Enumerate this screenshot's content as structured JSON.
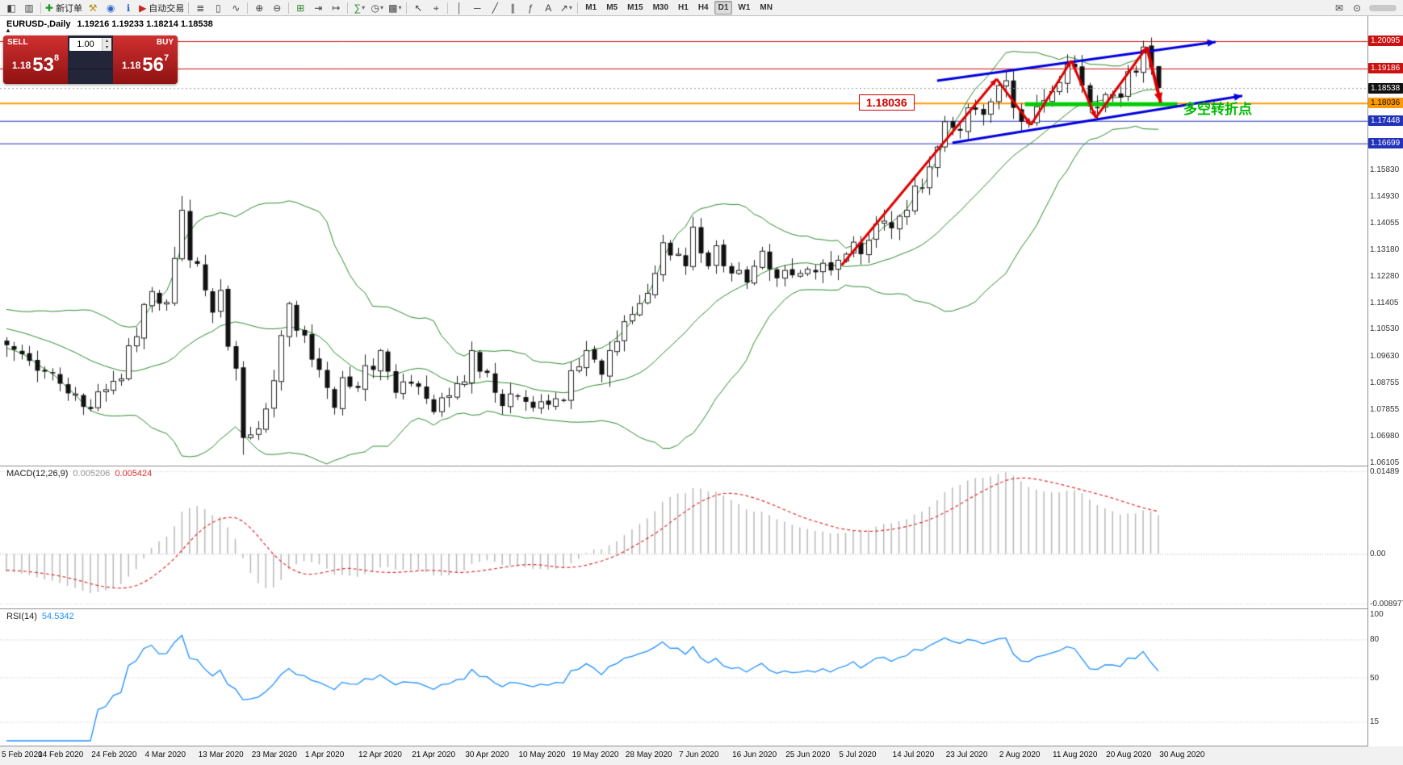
{
  "toolbar": {
    "caret_glyph": "▾",
    "groups": [
      {
        "buttons": [
          {
            "name": "charts-icon",
            "glyph": "◧"
          },
          {
            "name": "profiles-icon",
            "glyph": "▥"
          }
        ]
      },
      {
        "buttons": [
          {
            "name": "new-order-button",
            "glyph": "✚",
            "glyph_color": "#1a9a1a",
            "label": "新订单"
          },
          {
            "name": "metaeditor-icon",
            "glyph": "⚒",
            "glyph_color": "#b8860b"
          },
          {
            "name": "accounts-icon",
            "glyph": "◉",
            "glyph_color": "#3366cc"
          },
          {
            "name": "info-icon",
            "glyph": "ℹ",
            "glyph_color": "#3366cc"
          },
          {
            "name": "autotrading-button",
            "glyph": "▶",
            "glyph_color": "#cc2222",
            "label": "自动交易"
          }
        ]
      },
      {
        "buttons": [
          {
            "name": "bars-icon",
            "glyph": "≣"
          },
          {
            "name": "candlesticks-icon",
            "glyph": "▯"
          },
          {
            "name": "line-chart-icon",
            "glyph": "∿"
          }
        ]
      },
      {
        "buttons": [
          {
            "name": "zoom-in-icon",
            "glyph": "⊕"
          },
          {
            "name": "zoom-out-icon",
            "glyph": "⊖"
          }
        ]
      },
      {
        "buttons": [
          {
            "name": "tile-windows-icon",
            "glyph": "⊞",
            "glyph_color": "#2a8a2a"
          },
          {
            "name": "auto-scroll-icon",
            "glyph": "⇥"
          },
          {
            "name": "chart-shift-icon",
            "glyph": "↦"
          }
        ]
      },
      {
        "buttons": [
          {
            "name": "indicators-icon",
            "glyph": "∑",
            "glyph_color": "#2a8a2a",
            "caret": true
          },
          {
            "name": "periods-icon",
            "glyph": "◷",
            "caret": true
          },
          {
            "name": "templates-icon",
            "glyph": "▩",
            "caret": true
          }
        ]
      },
      {
        "buttons": [
          {
            "name": "cursor-icon",
            "glyph": "↖"
          },
          {
            "name": "crosshair-icon",
            "glyph": "⌖"
          }
        ]
      },
      {
        "buttons": [
          {
            "name": "vertical-line-icon",
            "glyph": "│"
          },
          {
            "name": "horizontal-line-icon",
            "glyph": "─"
          },
          {
            "name": "trendline-icon",
            "glyph": "╱"
          },
          {
            "name": "channel-icon",
            "glyph": "∥"
          },
          {
            "name": "fibonacci-icon",
            "glyph": "ƒ"
          },
          {
            "name": "text-icon",
            "glyph": "A"
          },
          {
            "name": "arrows-icon",
            "glyph": "↗",
            "caret": true
          }
        ]
      }
    ],
    "timeframes": [
      {
        "label": "M1"
      },
      {
        "label": "M5"
      },
      {
        "label": "M15"
      },
      {
        "label": "M30"
      },
      {
        "label": "H1"
      },
      {
        "label": "H4"
      },
      {
        "label": "D1",
        "active": true
      },
      {
        "label": "W1"
      },
      {
        "label": "MN"
      }
    ],
    "right_buttons": [
      {
        "name": "new-email-icon",
        "glyph": "✉"
      },
      {
        "name": "search-icon",
        "glyph": "⊙"
      }
    ]
  },
  "chart": {
    "title_symbol": "EURUSD-,Daily",
    "title_ohlc": "1.19216 1.19233 1.18214 1.18538"
  },
  "one_click": {
    "toggle_glyph": "▲",
    "sell_label": "SELL",
    "buy_label": "BUY",
    "volume": "1.00",
    "spinner_up_glyph": "▴",
    "spinner_down_glyph": "▾",
    "sell_price_head": "1.18",
    "sell_price_big": "53",
    "sell_price_sup": "8",
    "buy_price_head": "1.18",
    "buy_price_big": "56",
    "buy_price_sup": "7"
  },
  "annotations": {
    "price_flag": "1.18036",
    "turning_point": "多空转折点"
  },
  "price_axis": {
    "highlighted": [
      {
        "text": "1.20095",
        "price": 1.20095,
        "bg": "#cc1111",
        "fg": "#ffffff"
      },
      {
        "text": "1.19186",
        "price": 1.19186,
        "bg": "#cc1111",
        "fg": "#ffffff"
      },
      {
        "text": "1.18538",
        "price": 1.18538,
        "bg": "#111111",
        "fg": "#ffffff"
      },
      {
        "text": "1.18036",
        "price": 1.18036,
        "bg": "#ff9900",
        "fg": "#111111"
      },
      {
        "text": "1.17448",
        "price": 1.17448,
        "bg": "#2233bb",
        "fg": "#ffffff"
      },
      {
        "text": "1.16699",
        "price": 1.16699,
        "bg": "#2233bb",
        "fg": "#ffffff"
      }
    ],
    "ticks": [
      "1.15830",
      "1.14930",
      "1.14055",
      "1.13180",
      "1.12280",
      "1.11405",
      "1.10530",
      "1.09630",
      "1.08755",
      "1.07855",
      "1.06980",
      "1.06105"
    ]
  },
  "macd_panel": {
    "name": "MACD(12,26,9)",
    "value_main": "0.005206",
    "value_signal": "0.005424",
    "axis": [
      "0.01489",
      "0.00",
      "-0.008977"
    ]
  },
  "rsi_panel": {
    "name": "RSI(14)",
    "value": "54.5342",
    "axis": [
      "100",
      "80",
      "50",
      "15"
    ],
    "levels": [
      80,
      50,
      15
    ]
  },
  "dates": [
    "5 Feb 2020",
    "14 Feb 2020",
    "24 Feb 2020",
    "4 Mar 2020",
    "13 Mar 2020",
    "23 Mar 2020",
    "1 Apr 2020",
    "12 Apr 2020",
    "21 Apr 2020",
    "30 Apr 2020",
    "10 May 2020",
    "19 May 2020",
    "28 May 2020",
    "7 Jun 2020",
    "16 Jun 2020",
    "25 Jun 2020",
    "5 Jul 2020",
    "14 Jul 2020",
    "23 Jul 2020",
    "2 Aug 2020",
    "11 Aug 2020",
    "20 Aug 2020",
    "30 Aug 2020"
  ],
  "chart_data": {
    "type": "candlestick",
    "symbol": "EURUSD",
    "period": "Daily",
    "price_range": {
      "top": 1.20925,
      "bottom": 1.06
    },
    "closes": [
      1.1,
      1.0985,
      1.097,
      1.0948,
      1.0915,
      1.0912,
      1.0908,
      1.0872,
      1.084,
      1.0838,
      1.0795,
      1.0788,
      1.0845,
      1.0852,
      1.088,
      1.0888,
      1.0998,
      1.1028,
      1.1135,
      1.1178,
      1.1138,
      1.1142,
      1.1288,
      1.1448,
      1.1282,
      1.127,
      1.1182,
      1.1108,
      1.1182,
      1.0995,
      1.0922,
      1.0692,
      1.0702,
      1.0722,
      1.0788,
      1.0882,
      1.1032,
      1.1138,
      1.1048,
      1.1032,
      1.0952,
      1.0918,
      1.0858,
      1.0792,
      1.0892,
      1.0862,
      1.0858,
      1.0932,
      1.0918,
      1.0982,
      1.0912,
      1.0842,
      1.0878,
      1.0872,
      1.0862,
      1.0822,
      1.0778,
      1.0825,
      1.0832,
      1.0872,
      1.0878,
      1.0982,
      1.0912,
      1.0908,
      1.0842,
      1.0798,
      1.0838,
      1.0832,
      1.0812,
      1.0792,
      1.0812,
      1.0802,
      1.0822,
      1.0818,
      1.0915,
      1.0928,
      1.0982,
      1.0952,
      1.0902,
      1.0982,
      1.1012,
      1.1078,
      1.1102,
      1.1138,
      1.1172,
      1.1238,
      1.134,
      1.1298,
      1.1302,
      1.1262,
      1.1392,
      1.1305,
      1.1262,
      1.133,
      1.1262,
      1.1238,
      1.1248,
      1.1208,
      1.1262,
      1.1312,
      1.1252,
      1.1222,
      1.1248,
      1.1232,
      1.1238,
      1.1252,
      1.1242,
      1.1272,
      1.1248,
      1.1282,
      1.1302,
      1.1342,
      1.1302,
      1.1348,
      1.1402,
      1.1412,
      1.1388,
      1.1428,
      1.1448,
      1.1528,
      1.1522,
      1.1592,
      1.1658,
      1.1742,
      1.1722,
      1.1712,
      1.1788,
      1.1782,
      1.1765,
      1.1808,
      1.1862,
      1.1878,
      1.1788,
      1.1742,
      1.1738,
      1.1792,
      1.1812,
      1.1842,
      1.1872,
      1.1932,
      1.1922,
      1.1862,
      1.1792,
      1.1788,
      1.1832,
      1.1832,
      1.1822,
      1.1908,
      1.1905,
      1.199,
      1.1922,
      1.18538
    ],
    "pre_pad": {
      "count": 30,
      "from": 1.1168,
      "to": 1.1008
    },
    "wick_overrides": {
      "23": {
        "h": 1.1495
      },
      "31": {
        "l": 1.0636
      },
      "131": {
        "h": 1.1912
      },
      "139": {
        "h": 1.1966
      },
      "149": {
        "h": 1.2011
      },
      "151": {
        "h": 1.1924,
        "l": 1.1821
      }
    },
    "bollinger": {
      "period": 20,
      "deviation": 2,
      "color": "#2e8b2e"
    },
    "levels": [
      {
        "price": 1.20095,
        "color": "#cc1111",
        "width": 1,
        "style": "solid"
      },
      {
        "price": 1.19186,
        "color": "#cc1111",
        "width": 1,
        "style": "solid"
      },
      {
        "price": 1.18538,
        "color": "#999999",
        "width": 1,
        "style": "dot"
      },
      {
        "price": 1.18036,
        "color": "#ff9900",
        "width": 2,
        "style": "solid"
      },
      {
        "price": 1.17448,
        "color": "#2233bb",
        "width": 1,
        "style": "solid"
      },
      {
        "price": 1.16699,
        "color": "#2233bb",
        "width": 1,
        "style": "solid"
      }
    ],
    "objects": {
      "support_zone": {
        "i1": 133.5,
        "i2": 153.5,
        "price": 1.18,
        "color": "#00cc00",
        "width": 5
      },
      "channel": [
        {
          "i1": 122,
          "p1": 1.1878,
          "i2": 158.5,
          "p2": 1.2007,
          "color": "#0000dd",
          "width": 3
        },
        {
          "i1": 124,
          "p1": 1.1672,
          "i2": 162.0,
          "p2": 1.1828,
          "color": "#0000dd",
          "width": 3
        }
      ],
      "zigzag": {
        "color": "#dd0000",
        "width": 3,
        "points": [
          [
            109.5,
            1.1266
          ],
          [
            129.8,
            1.1884
          ],
          [
            134.3,
            1.1731
          ],
          [
            139.6,
            1.1945
          ],
          [
            142.8,
            1.1755
          ],
          [
            149.5,
            1.199
          ],
          [
            151.3,
            1.1806
          ]
        ]
      }
    },
    "macd": {
      "params": [
        12,
        26,
        9
      ],
      "range": {
        "max": 0.01489,
        "min": -0.008977
      },
      "hist_color": "#b9b9b9",
      "signal_color": "#e03030"
    },
    "rsi": {
      "period": 14,
      "range": [
        0,
        100
      ],
      "color": "#1e90ff"
    }
  }
}
